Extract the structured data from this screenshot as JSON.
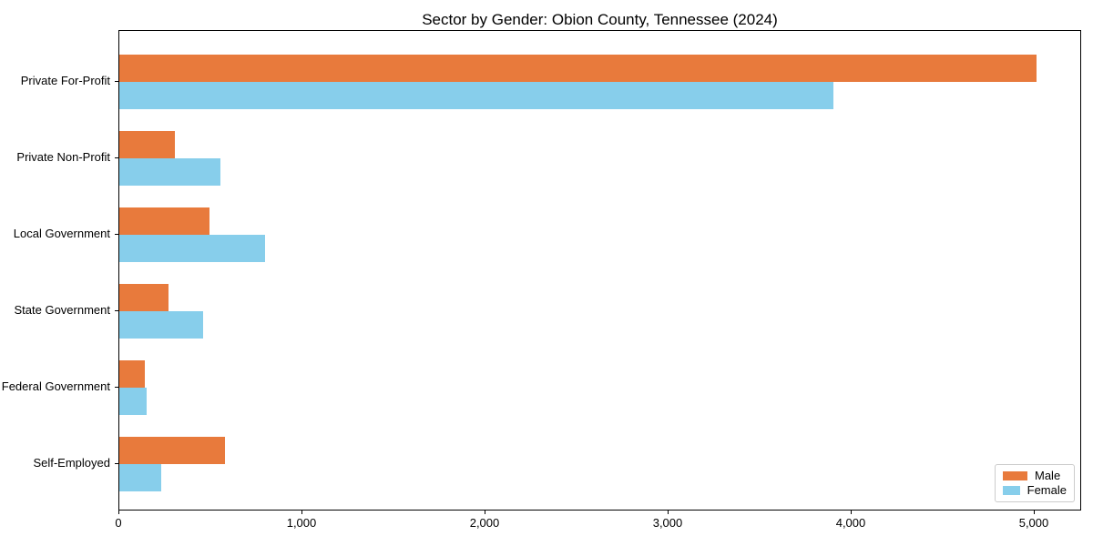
{
  "chart_data": {
    "type": "bar",
    "orientation": "horizontal",
    "title": "Sector by Gender: Obion County, Tennessee (2024)",
    "xlabel": "",
    "ylabel": "",
    "categories": [
      "Private For-Profit",
      "Private Non-Profit",
      "Local Government",
      "State Government",
      "Federal Government",
      "Self-Employed"
    ],
    "series": [
      {
        "name": "Male",
        "color": "#e87a3c",
        "values": [
          5010,
          305,
          495,
          270,
          140,
          575
        ]
      },
      {
        "name": "Female",
        "color": "#87ceeb",
        "values": [
          3900,
          550,
          795,
          460,
          150,
          230
        ]
      }
    ],
    "xlim": [
      0,
      5260
    ],
    "xticks": [
      0,
      1000,
      2000,
      3000,
      4000,
      5000
    ],
    "xtick_labels": [
      "0",
      "1,000",
      "2,000",
      "3,000",
      "4,000",
      "5,000"
    ],
    "grid": false,
    "legend_position": "lower right",
    "frame_color": "#000000",
    "background_color": "#ffffff"
  }
}
